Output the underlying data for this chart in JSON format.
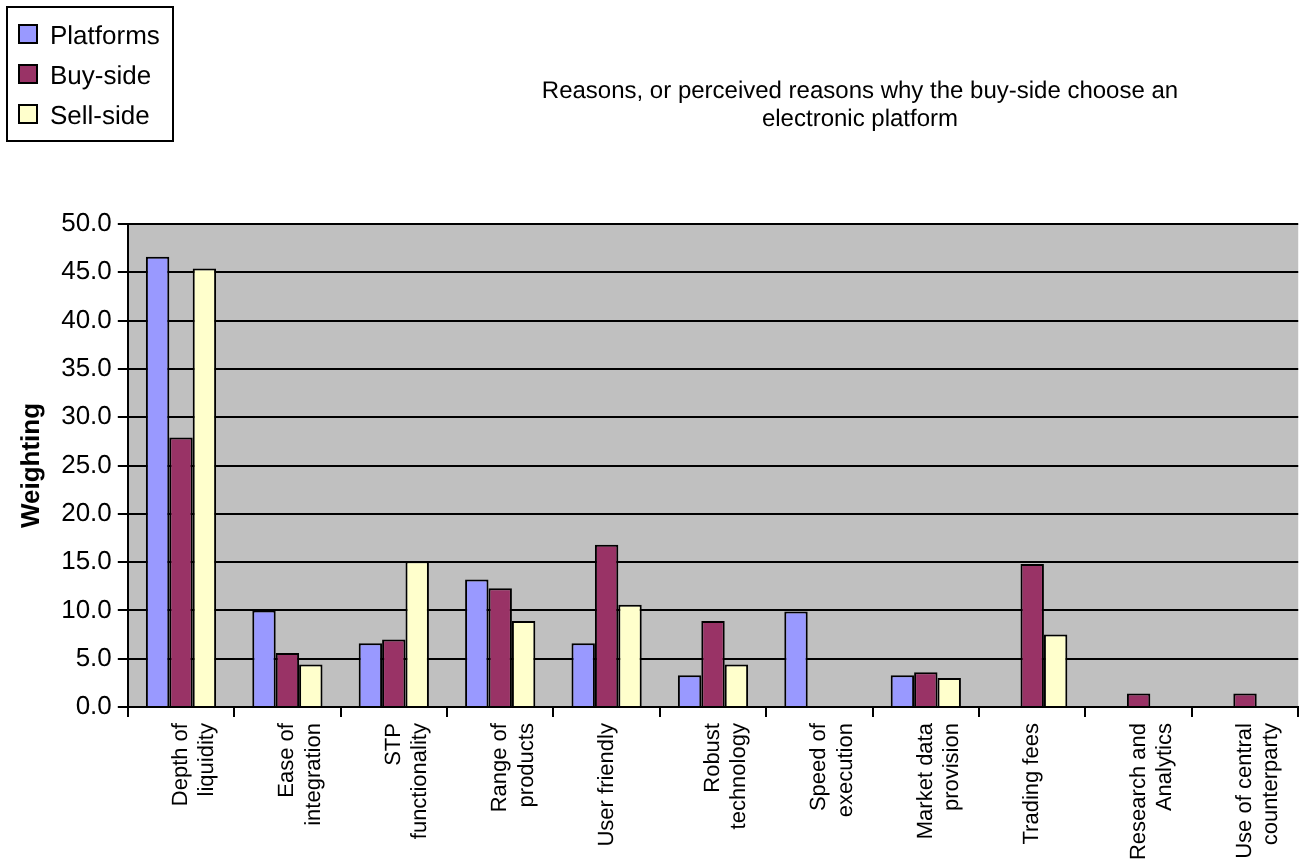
{
  "chart_data": {
    "type": "bar",
    "title": "Reasons, or perceived reasons why the buy-side choose an electronic platform",
    "ylabel": "Weighting",
    "categories": [
      "Depth of liquidity",
      "Ease of integration",
      "STP functionality",
      "Range of products",
      "User friendly",
      "Robust technology",
      "Speed of execution",
      "Market data provision",
      "Trading fees",
      "Research and Analytics",
      "Use of central counterparty"
    ],
    "series": [
      {
        "name": "Platforms",
        "color": "#9999ff",
        "values": [
          46.6,
          10.0,
          6.6,
          13.2,
          6.6,
          3.3,
          9.9,
          3.3,
          0,
          0,
          0
        ]
      },
      {
        "name": "Buy-side",
        "color": "#993366",
        "values": [
          27.9,
          5.6,
          7.0,
          12.3,
          16.8,
          8.9,
          0,
          3.6,
          14.8,
          1.4,
          1.4
        ]
      },
      {
        "name": "Sell-side",
        "color": "#ffffcc",
        "values": [
          45.4,
          4.4,
          15.1,
          8.9,
          10.6,
          4.4,
          0,
          3.0,
          7.5,
          0,
          0
        ]
      }
    ],
    "ylim": [
      0,
      50
    ],
    "yticks": [
      {
        "value": 0,
        "label": "0.0"
      },
      {
        "value": 5,
        "label": "5.0"
      },
      {
        "value": 10,
        "label": "10.0"
      },
      {
        "value": 15,
        "label": "15.0"
      },
      {
        "value": 20,
        "label": "20.0"
      },
      {
        "value": 25,
        "label": "25.0"
      },
      {
        "value": 30,
        "label": "30.0"
      },
      {
        "value": 35,
        "label": "35.0"
      },
      {
        "value": 40,
        "label": "40.0"
      },
      {
        "value": 45,
        "label": "45.0"
      },
      {
        "value": 50,
        "label": "50.0"
      }
    ],
    "grid": "y",
    "legend": "top left"
  }
}
